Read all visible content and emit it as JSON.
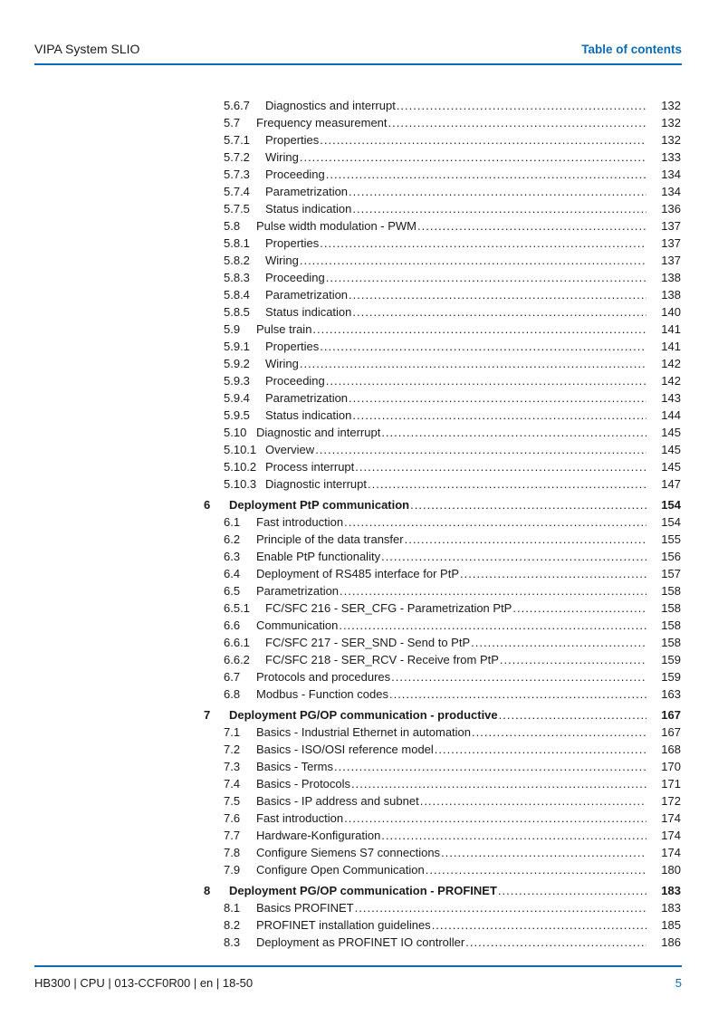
{
  "header": {
    "left": "VIPA System SLIO",
    "right": "Table of contents"
  },
  "footer": {
    "left": "HB300 | CPU | 013-CCF0R00 | en | 18-50",
    "page": "5"
  },
  "colors": {
    "accent_blue": "#0e6bb2",
    "text": "#1a1a1a"
  },
  "toc": {
    "entries": [
      {
        "num": "5.6.7",
        "title": "Diagnostics and interrupt",
        "page": "132"
      },
      {
        "num": "5.7",
        "title": "Frequency measurement",
        "page": "132"
      },
      {
        "num": "5.7.1",
        "title": "Properties",
        "page": "132"
      },
      {
        "num": "5.7.2",
        "title": "Wiring",
        "page": "133"
      },
      {
        "num": "5.7.3",
        "title": "Proceeding",
        "page": "134"
      },
      {
        "num": "5.7.4",
        "title": "Parametrization",
        "page": "134"
      },
      {
        "num": "5.7.5",
        "title": "Status indication",
        "page": "136"
      },
      {
        "num": "5.8",
        "title": "Pulse width modulation - PWM",
        "page": "137"
      },
      {
        "num": "5.8.1",
        "title": "Properties",
        "page": "137"
      },
      {
        "num": "5.8.2",
        "title": "Wiring",
        "page": "137"
      },
      {
        "num": "5.8.3",
        "title": "Proceeding",
        "page": "138"
      },
      {
        "num": "5.8.4",
        "title": "Parametrization",
        "page": "138"
      },
      {
        "num": "5.8.5",
        "title": "Status indication",
        "page": "140"
      },
      {
        "num": "5.9",
        "title": "Pulse train",
        "page": "141"
      },
      {
        "num": "5.9.1",
        "title": "Properties",
        "page": "141"
      },
      {
        "num": "5.9.2",
        "title": "Wiring",
        "page": "142"
      },
      {
        "num": "5.9.3",
        "title": "Proceeding",
        "page": "142"
      },
      {
        "num": "5.9.4",
        "title": "Parametrization",
        "page": "143"
      },
      {
        "num": "5.9.5",
        "title": "Status indication",
        "page": "144"
      },
      {
        "num": "5.10",
        "title": "Diagnostic and interrupt",
        "page": "145"
      },
      {
        "num": "5.10.1",
        "title": "Overview",
        "page": "145"
      },
      {
        "num": "5.10.2",
        "title": "Process interrupt",
        "page": "145"
      },
      {
        "num": "5.10.3",
        "title": "Diagnostic interrupt",
        "page": "147"
      },
      {
        "num": "6",
        "title": "Deployment PtP communication",
        "page": "154"
      },
      {
        "num": "6.1",
        "title": "Fast introduction",
        "page": "154"
      },
      {
        "num": "6.2",
        "title": "Principle of the data transfer",
        "page": "155"
      },
      {
        "num": "6.3",
        "title": "Enable PtP functionality",
        "page": "156"
      },
      {
        "num": "6.4",
        "title": "Deployment of RS485 interface for PtP",
        "page": "157"
      },
      {
        "num": "6.5",
        "title": "Parametrization",
        "page": "158"
      },
      {
        "num": "6.5.1",
        "title": "FC/SFC 216 - SER_CFG - Parametrization PtP",
        "page": "158"
      },
      {
        "num": "6.6",
        "title": "Communication",
        "page": "158"
      },
      {
        "num": "6.6.1",
        "title": "FC/SFC 217 - SER_SND - Send to PtP",
        "page": "158"
      },
      {
        "num": "6.6.2",
        "title": "FC/SFC 218 - SER_RCV - Receive from PtP",
        "page": "159"
      },
      {
        "num": "6.7",
        "title": "Protocols and procedures",
        "page": "159"
      },
      {
        "num": "6.8",
        "title": "Modbus - Function codes ",
        "page": "163"
      },
      {
        "num": "7",
        "title": "Deployment PG/OP communication - productive",
        "page": "167"
      },
      {
        "num": "7.1",
        "title": "Basics - Industrial Ethernet in automation",
        "page": "167"
      },
      {
        "num": "7.2",
        "title": "Basics - ISO/OSI reference model",
        "page": "168"
      },
      {
        "num": "7.3",
        "title": "Basics - Terms",
        "page": "170"
      },
      {
        "num": "7.4",
        "title": "Basics - Protocols",
        "page": "171"
      },
      {
        "num": "7.5",
        "title": "Basics - IP address and subnet",
        "page": "172"
      },
      {
        "num": "7.6",
        "title": "Fast introduction",
        "page": "174"
      },
      {
        "num": "7.7",
        "title": "Hardware-Konfiguration",
        "page": "174"
      },
      {
        "num": "7.8",
        "title": "Configure Siemens S7 connections",
        "page": "174"
      },
      {
        "num": "7.9",
        "title": "Configure Open Communication",
        "page": "180"
      },
      {
        "num": "8",
        "title": "Deployment PG/OP communication - PROFINET",
        "page": "183"
      },
      {
        "num": "8.1",
        "title": "Basics PROFINET",
        "page": "183"
      },
      {
        "num": "8.2",
        "title": "PROFINET installation guidelines",
        "page": "185"
      },
      {
        "num": "8.3",
        "title": "Deployment as PROFINET IO controller",
        "page": "186"
      }
    ]
  }
}
